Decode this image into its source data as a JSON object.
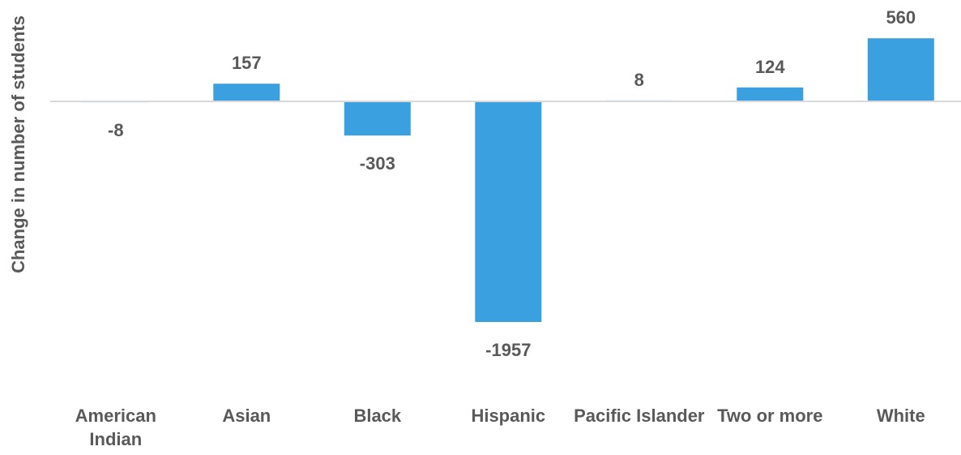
{
  "chart_data": {
    "type": "bar",
    "categories": [
      "American Indian",
      "Asian",
      "Black",
      "Hispanic",
      "Pacific Islander",
      "Two or more",
      "White"
    ],
    "category_lines": [
      [
        "American",
        "Indian"
      ],
      [
        "Asian"
      ],
      [
        "Black"
      ],
      [
        "Hispanic"
      ],
      [
        "Pacific Islander"
      ],
      [
        "Two or more"
      ],
      [
        "White"
      ]
    ],
    "values": [
      -8,
      157,
      -303,
      -1957,
      8,
      124,
      560
    ],
    "data_labels": [
      "-8",
      "157",
      "-303",
      "-1957",
      "8",
      "124",
      "560"
    ],
    "title": "",
    "xlabel": "",
    "ylabel": "Change in number of students",
    "ylim": [
      -2400,
      600
    ],
    "grid": false,
    "legend": "none",
    "bar_color": "#3aa0e0",
    "baseline_color": "#d9d9d9",
    "text_color": "#595959"
  }
}
